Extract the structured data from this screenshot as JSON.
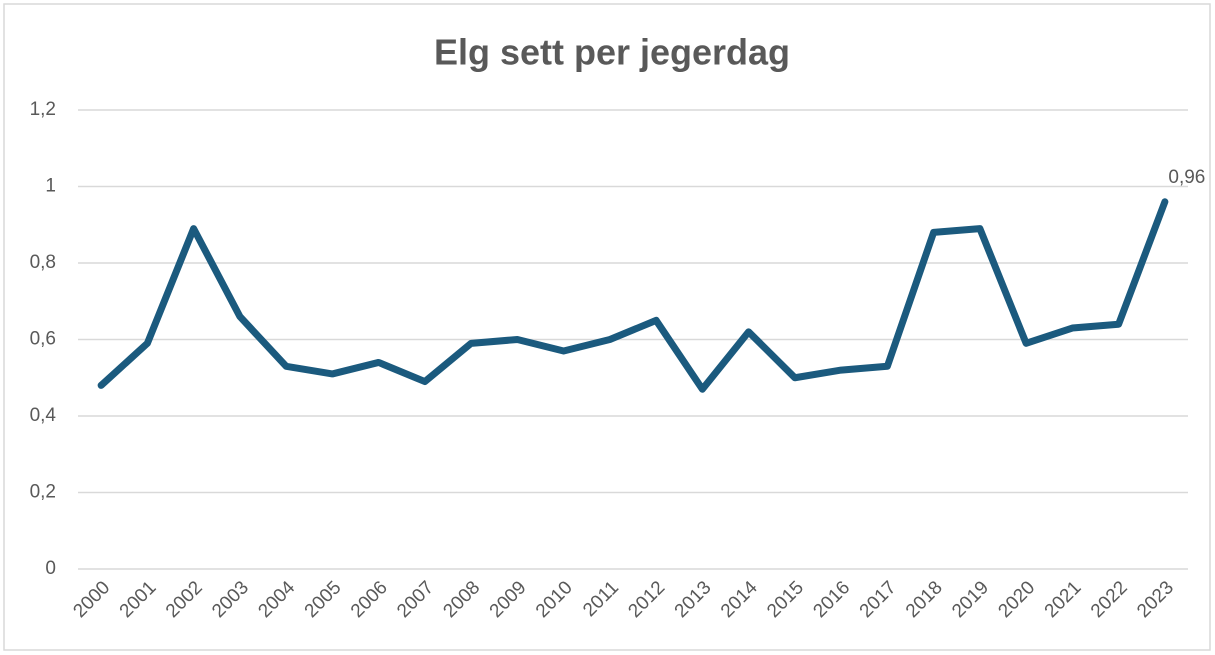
{
  "chart_data": {
    "type": "line",
    "title": "Elg sett per jegerdag",
    "categories": [
      "2000",
      "2001",
      "2002",
      "2003",
      "2004",
      "2005",
      "2006",
      "2007",
      "2008",
      "2009",
      "2010",
      "2011",
      "2012",
      "2013",
      "2014",
      "2015",
      "2016",
      "2017",
      "2018",
      "2019",
      "2020",
      "2021",
      "2022",
      "2023"
    ],
    "values": [
      0.48,
      0.59,
      0.89,
      0.66,
      0.53,
      0.51,
      0.54,
      0.49,
      0.59,
      0.6,
      0.57,
      0.6,
      0.65,
      0.47,
      0.62,
      0.5,
      0.52,
      0.53,
      0.88,
      0.89,
      0.59,
      0.63,
      0.64,
      0.96
    ],
    "value_labels": [
      null,
      null,
      null,
      null,
      null,
      null,
      null,
      null,
      null,
      null,
      null,
      null,
      null,
      null,
      null,
      null,
      null,
      null,
      null,
      null,
      null,
      null,
      null,
      "0,96"
    ],
    "color": "#1b5a7e",
    "ylim": [
      0,
      1.2
    ],
    "yticks": [
      0,
      {
        "value": 0.2,
        "label": "0,2"
      },
      {
        "value": 0.4,
        "label": "0,4"
      },
      {
        "value": 0.6,
        "label": "0,6"
      },
      {
        "value": 0.8,
        "label": "0,8"
      },
      1,
      {
        "value": 1.2,
        "label": "1,2"
      }
    ],
    "grid": true
  }
}
